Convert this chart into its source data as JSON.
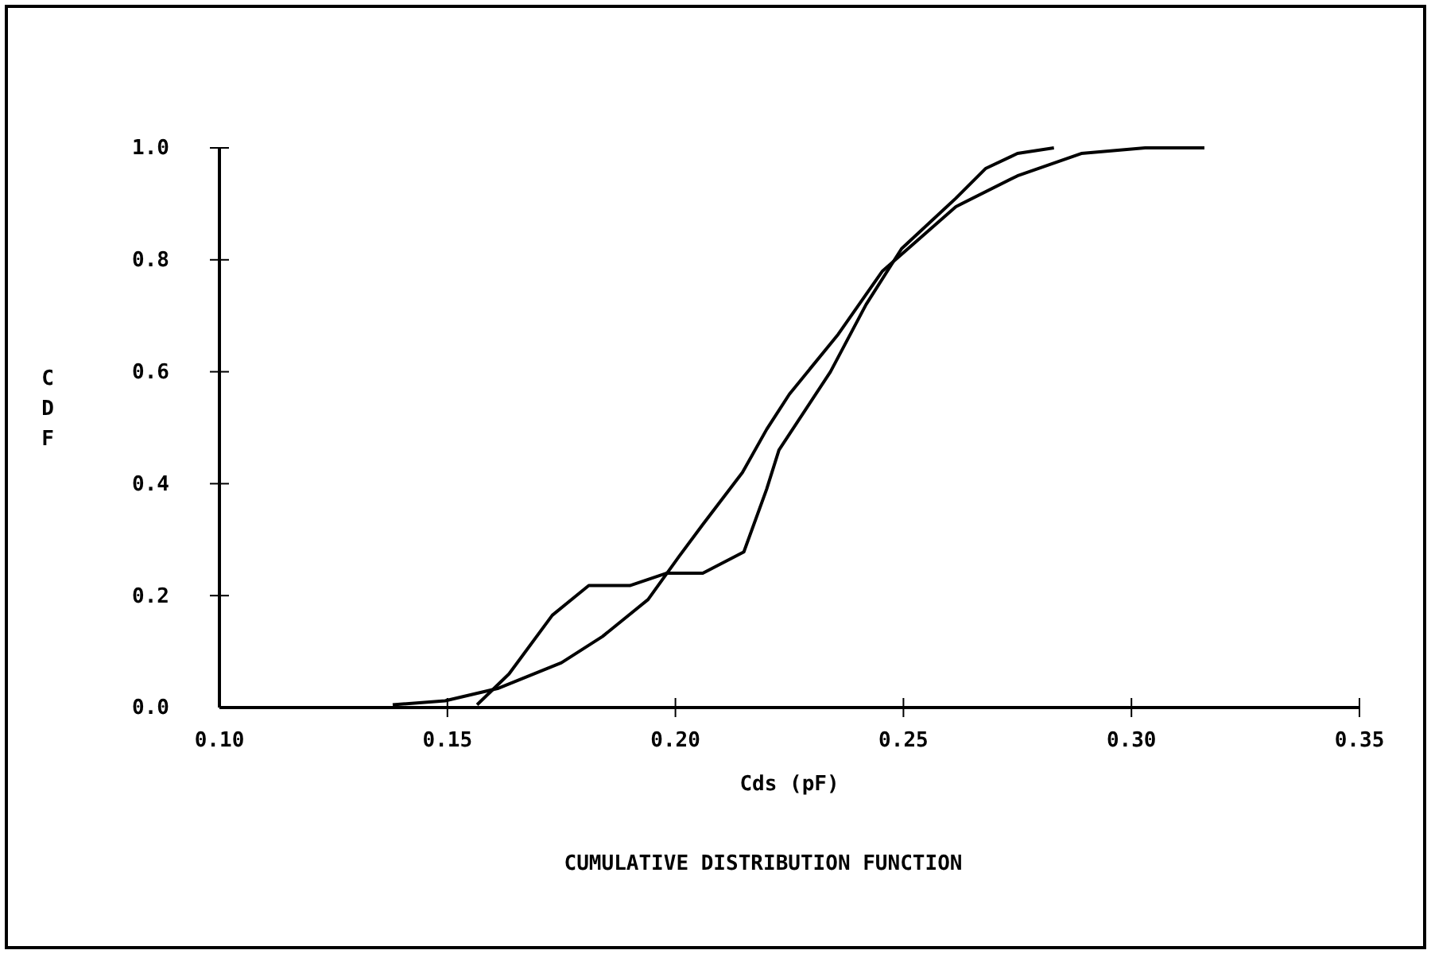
{
  "chart_data": {
    "type": "line",
    "xlabel": "Cds (pF)",
    "ylabel": "CDF",
    "title": "CUMULATIVE DISTRIBUTION FUNCTION",
    "xlim": [
      0.1,
      0.35
    ],
    "xticks": [
      {
        "value": 0.1,
        "label": "0.10"
      },
      0.15,
      {
        "value": 0.2,
        "label": "0.20"
      },
      0.25,
      {
        "value": 0.3,
        "label": "0.30"
      },
      0.35
    ],
    "ylim": [
      0,
      1
    ],
    "yticks": [
      {
        "value": 0,
        "label": "0.0"
      },
      0.2,
      0.4,
      0.6,
      0.8,
      {
        "value": 1,
        "label": "1.0"
      }
    ],
    "grid": false,
    "line_style": "solid",
    "marker": "none",
    "series": [
      {
        "color": "#000000",
        "x": [
          0.138,
          0.1495,
          0.161,
          0.175,
          0.184,
          0.194,
          0.2008,
          0.206,
          0.2147,
          0.22,
          0.225,
          0.2357,
          0.2454,
          0.2615,
          0.275,
          0.289,
          0.303,
          0.316
        ],
        "values": [
          0.005,
          0.012,
          0.034,
          0.08,
          0.127,
          0.193,
          0.27,
          0.327,
          0.42,
          0.497,
          0.56,
          0.667,
          0.78,
          0.895,
          0.95,
          0.99,
          1.0,
          1.0
        ]
      },
      {
        "color": "#000000",
        "x": [
          0.1565,
          0.1635,
          0.173,
          0.181,
          0.19,
          0.198,
          0.206,
          0.215,
          0.22,
          0.2227,
          0.234,
          0.2418,
          0.2496,
          0.2615,
          0.268,
          0.275,
          0.283
        ],
        "values": [
          0.005,
          0.06,
          0.165,
          0.218,
          0.218,
          0.24,
          0.24,
          0.278,
          0.39,
          0.46,
          0.6,
          0.72,
          0.82,
          0.91,
          0.963,
          0.99,
          1.0
        ]
      }
    ]
  }
}
